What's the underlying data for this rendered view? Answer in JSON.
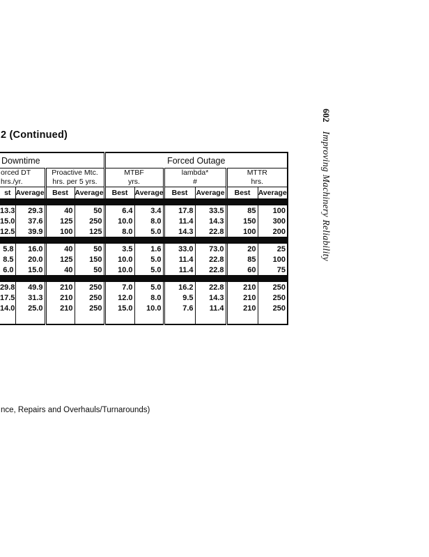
{
  "side_header": {
    "page_number": "602",
    "book_title": "Improving Machinery Reliability"
  },
  "table": {
    "title": "2 (Continued)",
    "sections": [
      {
        "label": "Downtime"
      },
      {
        "label": "Forced Outage"
      }
    ],
    "subheaders": [
      {
        "line1": "orced  DT",
        "line2": "hrs./yr."
      },
      {
        "line1": "Proactive Mtc.",
        "line2": "hrs. per 5 yrs."
      },
      {
        "line1": "MTBF",
        "line2": "yrs."
      },
      {
        "line1": "lambda*",
        "line2": "#"
      },
      {
        "line1": "MTTR",
        "line2": "hrs."
      }
    ],
    "col_headers": [
      "st",
      "Average",
      "Best",
      "Average",
      "Best",
      "Average",
      "Best",
      "Average",
      "Best",
      "Average"
    ],
    "groups": [
      {
        "rows": [
          [
            "13.3",
            "29.3",
            "40",
            "50",
            "6.4",
            "3.4",
            "17.8",
            "33.5",
            "85",
            "100"
          ],
          [
            "15.0",
            "37.6",
            "125",
            "250",
            "10.0",
            "8.0",
            "11.4",
            "14.3",
            "150",
            "300"
          ],
          [
            "12.5",
            "39.9",
            "100",
            "125",
            "8.0",
            "5.0",
            "14.3",
            "22.8",
            "100",
            "200"
          ]
        ]
      },
      {
        "rows": [
          [
            "5.8",
            "16.0",
            "40",
            "50",
            "3.5",
            "1.6",
            "33.0",
            "73.0",
            "20",
            "25"
          ],
          [
            "8.5",
            "20.0",
            "125",
            "150",
            "10.0",
            "5.0",
            "11.4",
            "22.8",
            "85",
            "100"
          ],
          [
            "6.0",
            "15.0",
            "40",
            "50",
            "10.0",
            "5.0",
            "11.4",
            "22.8",
            "60",
            "75"
          ]
        ]
      },
      {
        "rows": [
          [
            "29.8",
            "49.9",
            "210",
            "250",
            "7.0",
            "5.0",
            "16.2",
            "22.8",
            "210",
            "250"
          ],
          [
            "17.5",
            "31.3",
            "210",
            "250",
            "12.0",
            "8.0",
            "9.5",
            "14.3",
            "210",
            "250"
          ],
          [
            "14.0",
            "25.0",
            "210",
            "250",
            "15.0",
            "10.0",
            "7.6",
            "11.4",
            "210",
            "250"
          ]
        ]
      }
    ]
  },
  "caption": "nce, Repairs and Overhauls/Turnarounds)"
}
